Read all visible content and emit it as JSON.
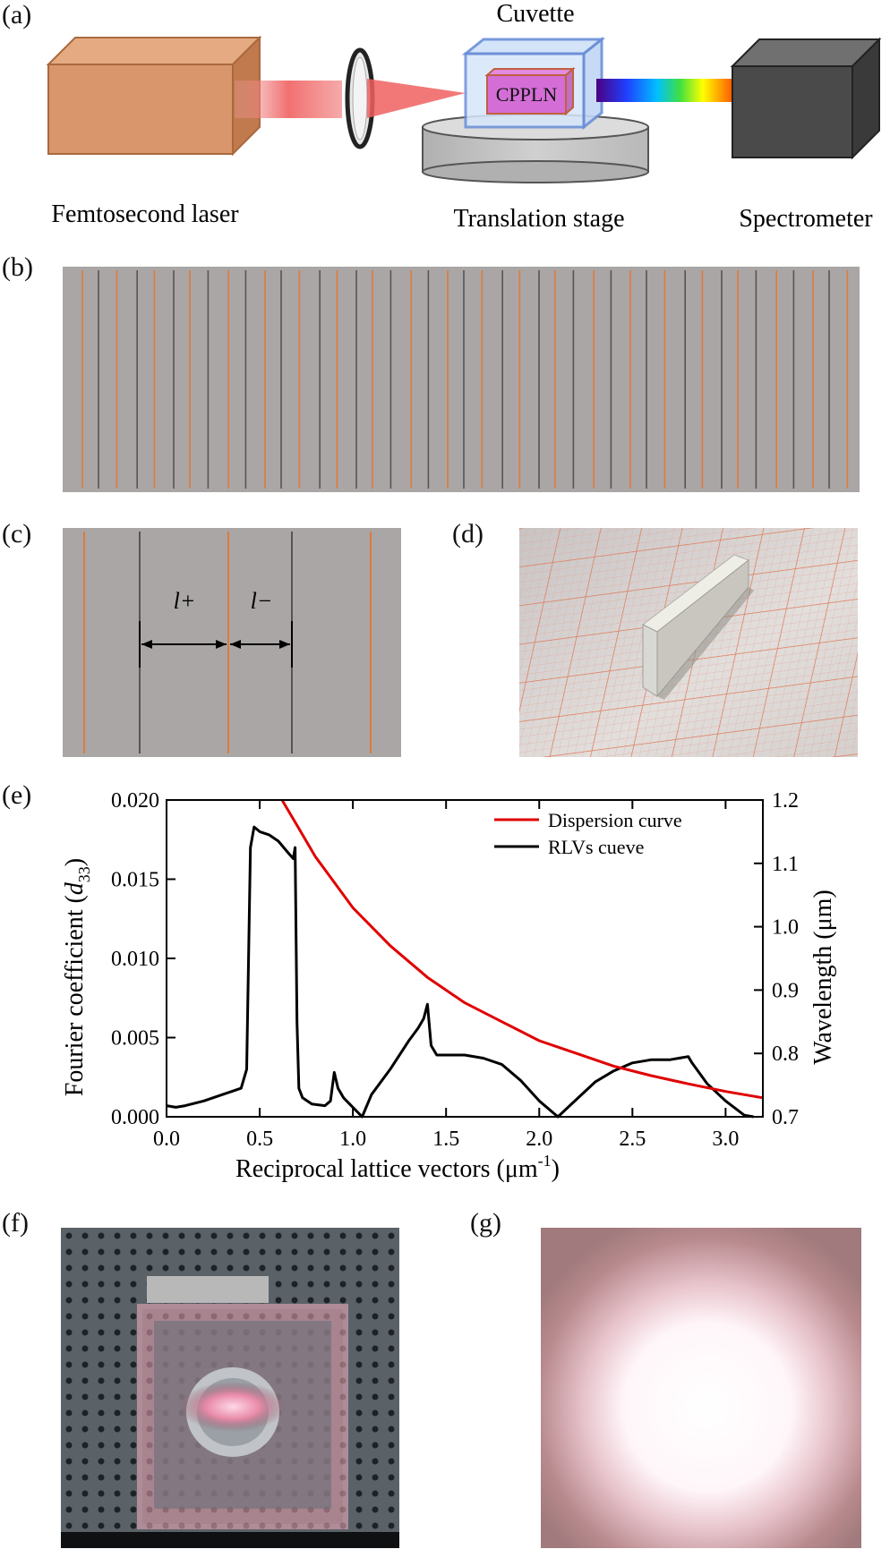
{
  "panels": {
    "a": "(a)",
    "b": "(b)",
    "c": "(c)",
    "d": "(d)",
    "e": "(e)",
    "f": "(f)",
    "g": "(g)"
  },
  "setup": {
    "cuvette": "Cuvette",
    "crystal": "CPPLN",
    "laser": "Femtosecond laser",
    "stage": "Translation stage",
    "spectrometer": "Spectrometer"
  },
  "domain_diagram": {
    "l_plus": "l+",
    "l_minus": "l−"
  },
  "colors": {
    "laser_box": "#d9956b",
    "grey_panel": "#aaa6a6",
    "orange_line": "#e07a3a",
    "dark_line": "#555555",
    "dispersion": "#e00000",
    "rlv": "#000000"
  },
  "chart_data": {
    "type": "line",
    "xlabel": "Reciprocal lattice vectors (μm",
    "xlabel_sup": "-1",
    "xlabel_end": ")",
    "ylabel_left": "Fourier coefficient (",
    "ylabel_left_italic": "d",
    "ylabel_left_sub": "33",
    "ylabel_left_end": ")",
    "ylabel_right": "Wavelength (μm)",
    "xlim": [
      0.0,
      3.2
    ],
    "ylim_left": [
      0.0,
      0.02
    ],
    "ylim_right": [
      0.7,
      1.2
    ],
    "x_ticks": [
      "0.0",
      "0.5",
      "1.0",
      "1.5",
      "2.0",
      "2.5",
      "3.0"
    ],
    "y_left_ticks": [
      "0.000",
      "0.005",
      "0.010",
      "0.015",
      "0.020"
    ],
    "y_right_ticks": [
      "0.7",
      "0.8",
      "0.9",
      "1.0",
      "1.1",
      "1.2"
    ],
    "legend": [
      "Dispersion curve",
      "RLVs cueve"
    ],
    "series": [
      {
        "name": "RLVs cueve",
        "axis": "left",
        "x": [
          0.0,
          0.05,
          0.1,
          0.2,
          0.3,
          0.35,
          0.4,
          0.43,
          0.45,
          0.47,
          0.5,
          0.55,
          0.6,
          0.65,
          0.68,
          0.69,
          0.7,
          0.71,
          0.73,
          0.78,
          0.85,
          0.88,
          0.9,
          0.92,
          0.95,
          1.0,
          1.05,
          1.1,
          1.2,
          1.3,
          1.35,
          1.38,
          1.4,
          1.42,
          1.45,
          1.5,
          1.6,
          1.7,
          1.8,
          1.9,
          2.0,
          2.1,
          2.2,
          2.3,
          2.4,
          2.5,
          2.6,
          2.7,
          2.75,
          2.8,
          2.82,
          2.9,
          3.0,
          3.1,
          3.15
        ],
        "y": [
          0.0007,
          0.0006,
          0.0007,
          0.001,
          0.0014,
          0.0016,
          0.0018,
          0.003,
          0.017,
          0.0183,
          0.018,
          0.0178,
          0.0174,
          0.0167,
          0.0163,
          0.017,
          0.006,
          0.0018,
          0.0012,
          0.0008,
          0.0007,
          0.001,
          0.0028,
          0.0018,
          0.0012,
          0.0006,
          0.0,
          0.0014,
          0.003,
          0.0048,
          0.0056,
          0.0062,
          0.0071,
          0.0045,
          0.0039,
          0.0039,
          0.0039,
          0.0037,
          0.0033,
          0.0023,
          0.001,
          0.0,
          0.0011,
          0.0022,
          0.0029,
          0.0034,
          0.0036,
          0.0036,
          0.0037,
          0.0038,
          0.0034,
          0.0021,
          0.001,
          0.0001,
          0.0
        ]
      },
      {
        "name": "Dispersion curve",
        "axis": "right",
        "x": [
          0.62,
          0.7,
          0.8,
          0.9,
          1.0,
          1.2,
          1.4,
          1.6,
          1.8,
          2.0,
          2.2,
          2.4,
          2.6,
          2.8,
          3.0,
          3.2
        ],
        "y": [
          1.2,
          1.16,
          1.11,
          1.07,
          1.03,
          0.97,
          0.92,
          0.88,
          0.85,
          0.82,
          0.8,
          0.78,
          0.765,
          0.752,
          0.74,
          0.73
        ]
      }
    ]
  }
}
